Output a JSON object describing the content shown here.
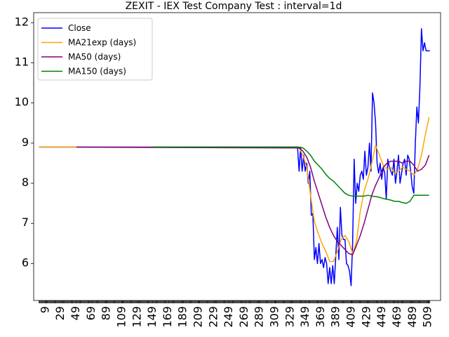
{
  "chart_data": {
    "type": "line",
    "title": "ZEXIT - IEX Test Company Test : interval=1d",
    "xlabel": "",
    "ylabel": "",
    "xlim": [
      -7,
      525
    ],
    "ylim": [
      5.08,
      12.25
    ],
    "x_ticks": [
      9,
      29,
      49,
      69,
      89,
      109,
      129,
      149,
      169,
      189,
      209,
      229,
      249,
      269,
      289,
      309,
      329,
      349,
      369,
      389,
      409,
      429,
      449,
      469,
      489,
      509
    ],
    "y_ticks": [
      6,
      7,
      8,
      9,
      10,
      11,
      12
    ],
    "grid": false,
    "legend_position": "top-left",
    "series": [
      {
        "name": "Close",
        "color": "#0000ff",
        "x": [
          0,
          338,
          340,
          342,
          344,
          346,
          348,
          350,
          352,
          354,
          356,
          358,
          360,
          362,
          364,
          366,
          368,
          370,
          372,
          374,
          376,
          378,
          380,
          382,
          384,
          386,
          388,
          390,
          392,
          394,
          396,
          398,
          400,
          402,
          404,
          406,
          408,
          410,
          412,
          414,
          416,
          418,
          420,
          422,
          424,
          426,
          428,
          430,
          432,
          434,
          436,
          438,
          440,
          442,
          444,
          446,
          448,
          450,
          452,
          454,
          456,
          458,
          460,
          462,
          464,
          466,
          468,
          470,
          472,
          474,
          476,
          478,
          480,
          482,
          484,
          486,
          488,
          490,
          492,
          494,
          496,
          498,
          500,
          502,
          504,
          506,
          508,
          510,
          511
        ],
        "y": [
          8.9,
          8.9,
          8.3,
          8.9,
          8.3,
          8.7,
          8.3,
          8.5,
          8.0,
          8.3,
          7.2,
          7.25,
          6.1,
          6.4,
          6.0,
          6.5,
          6.0,
          6.1,
          5.9,
          6.15,
          6.0,
          5.5,
          5.9,
          5.5,
          5.95,
          5.5,
          6.2,
          6.9,
          6.1,
          7.4,
          6.7,
          6.6,
          6.6,
          6.0,
          5.95,
          5.8,
          5.45,
          6.5,
          8.6,
          7.5,
          8.0,
          7.8,
          8.2,
          8.3,
          8.1,
          8.8,
          8.2,
          8.4,
          9.0,
          8.3,
          10.25,
          10.0,
          9.5,
          8.5,
          8.25,
          8.5,
          8.1,
          8.4,
          8.25,
          7.6,
          8.6,
          8.4,
          8.3,
          8.2,
          8.6,
          8.0,
          8.3,
          8.7,
          8.0,
          8.25,
          8.5,
          8.6,
          8.2,
          8.7,
          8.6,
          8.3,
          7.9,
          7.75,
          9.0,
          9.9,
          9.5,
          10.4,
          11.85,
          11.3,
          11.5,
          11.3,
          11.3,
          11.3,
          11.3
        ]
      },
      {
        "name": "MA21exp (days)",
        "color": "#ffa500",
        "x": [
          0,
          340,
          345,
          350,
          355,
          360,
          365,
          370,
          375,
          380,
          385,
          390,
          395,
          400,
          405,
          410,
          415,
          420,
          425,
          430,
          435,
          440,
          445,
          450,
          455,
          460,
          465,
          470,
          475,
          480,
          485,
          490,
          495,
          500,
          505,
          510
        ],
        "y": [
          8.9,
          8.88,
          8.7,
          8.4,
          7.7,
          7.05,
          6.75,
          6.5,
          6.3,
          6.05,
          6.05,
          6.3,
          6.6,
          6.7,
          6.55,
          6.25,
          6.55,
          7.3,
          7.8,
          8.1,
          8.5,
          8.95,
          8.7,
          8.45,
          8.35,
          8.4,
          8.25,
          8.3,
          8.4,
          8.35,
          8.3,
          8.2,
          8.35,
          8.7,
          9.2,
          9.65
        ]
      },
      {
        "name": "MA50 (days)",
        "color": "#800080",
        "x": [
          49,
          340,
          345,
          350,
          355,
          360,
          365,
          370,
          375,
          380,
          385,
          390,
          395,
          400,
          405,
          410,
          415,
          420,
          425,
          430,
          435,
          440,
          445,
          450,
          455,
          460,
          465,
          470,
          475,
          480,
          485,
          490,
          495,
          500,
          505,
          510
        ],
        "y": [
          8.9,
          8.88,
          8.8,
          8.65,
          8.4,
          8.05,
          7.75,
          7.45,
          7.15,
          6.9,
          6.7,
          6.55,
          6.45,
          6.35,
          6.25,
          6.22,
          6.45,
          6.7,
          7.0,
          7.35,
          7.7,
          7.95,
          8.15,
          8.4,
          8.5,
          8.55,
          8.55,
          8.55,
          8.5,
          8.55,
          8.55,
          8.45,
          8.3,
          8.35,
          8.45,
          8.7
        ]
      },
      {
        "name": "MA150 (days)",
        "color": "#008000",
        "x": [
          149,
          340,
          345,
          350,
          355,
          360,
          365,
          370,
          375,
          380,
          385,
          390,
          395,
          400,
          405,
          410,
          415,
          420,
          425,
          430,
          435,
          440,
          445,
          450,
          455,
          460,
          465,
          470,
          475,
          480,
          485,
          490,
          495,
          500,
          505,
          510
        ],
        "y": [
          8.9,
          8.9,
          8.88,
          8.8,
          8.7,
          8.55,
          8.45,
          8.35,
          8.22,
          8.12,
          8.05,
          7.95,
          7.85,
          7.75,
          7.7,
          7.68,
          7.68,
          7.68,
          7.68,
          7.7,
          7.68,
          7.67,
          7.65,
          7.62,
          7.6,
          7.58,
          7.55,
          7.55,
          7.52,
          7.5,
          7.55,
          7.7,
          7.7,
          7.7,
          7.7,
          7.7
        ]
      }
    ]
  }
}
